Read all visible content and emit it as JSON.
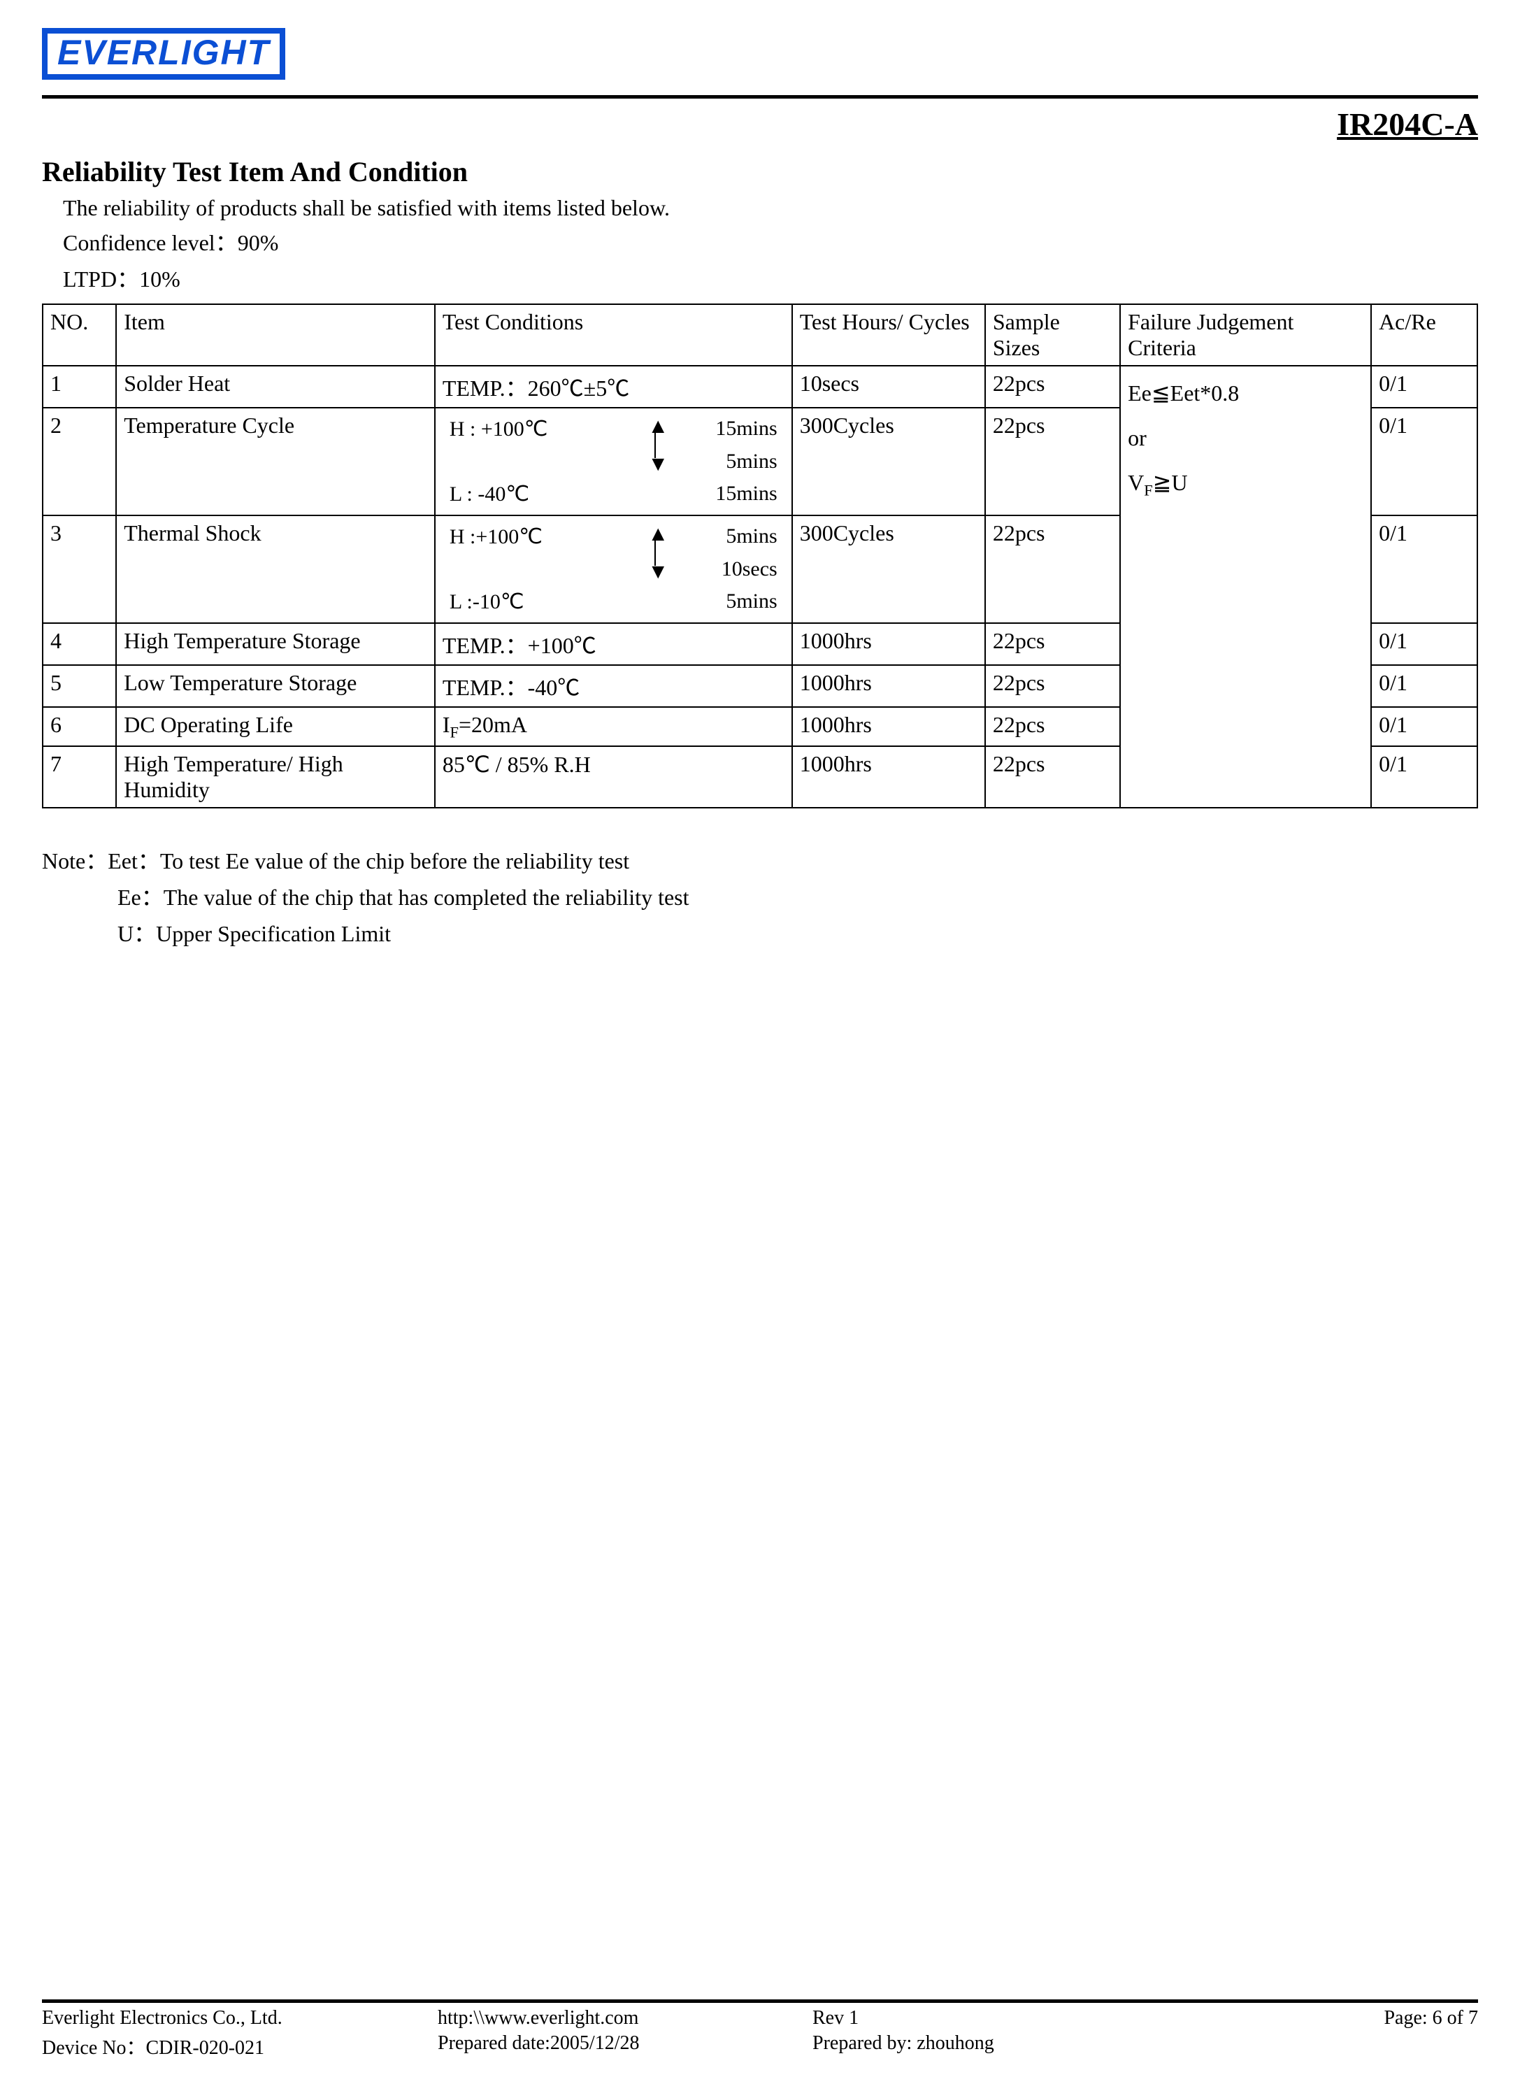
{
  "header": {
    "logo_text": "EVERLIGHT",
    "part_number": "IR204C-A"
  },
  "section": {
    "title": "Reliability Test Item And Condition",
    "intro": "The reliability of products shall be satisfied with items listed below.",
    "confidence": "Confidence level：90%",
    "ltpd": "LTPD：10%"
  },
  "table": {
    "headers": {
      "no": "NO.",
      "item": "Item",
      "cond": "Test Conditions",
      "hours": "Test Hours/ Cycles",
      "sizes": "Sample Sizes",
      "fail": "Failure Judgement Criteria",
      "acre": "Ac/Re"
    },
    "criteria": {
      "line1": "Ee≦Eet*0.8",
      "line2": "or",
      "line3_pre": "V",
      "line3_sub": "F",
      "line3_post": "≧U"
    },
    "rows": [
      {
        "no": "1",
        "item": "Solder Heat",
        "cond_simple": "TEMP.：260℃±5℃",
        "hours": "10secs",
        "sizes": "22pcs",
        "acre": "0/1"
      },
      {
        "no": "2",
        "item": "Temperature Cycle",
        "cond_cycle": {
          "h_label": "H : +100℃",
          "h_time": "15mins",
          "mid_time": "5mins",
          "l_label": "L : -40℃",
          "l_time": "15mins"
        },
        "hours": "300Cycles",
        "sizes": "22pcs",
        "acre": "0/1"
      },
      {
        "no": "3",
        "item": "Thermal Shock",
        "cond_cycle": {
          "h_label": "H :+100℃",
          "h_time": "5mins",
          "mid_time": "10secs",
          "l_label": "L :-10℃",
          "l_time": "5mins"
        },
        "hours": "300Cycles",
        "sizes": "22pcs",
        "acre": "0/1"
      },
      {
        "no": "4",
        "item": "High Temperature Storage",
        "cond_simple": "TEMP.：+100℃",
        "hours": "1000hrs",
        "sizes": "22pcs",
        "acre": "0/1"
      },
      {
        "no": "5",
        "item": "Low Temperature Storage",
        "cond_simple": "TEMP.：-40℃",
        "hours": "1000hrs",
        "sizes": "22pcs",
        "acre": "0/1"
      },
      {
        "no": "6",
        "item": "DC Operating Life",
        "cond_if": {
          "pre": "I",
          "sub": "F",
          "post": "=20mA"
        },
        "hours": "1000hrs",
        "sizes": "22pcs",
        "acre": "0/1"
      },
      {
        "no": "7",
        "item": "High Temperature/ High Humidity",
        "cond_simple": "85℃ / 85% R.H",
        "hours": "1000hrs",
        "sizes": "22pcs",
        "acre": "0/1"
      }
    ]
  },
  "notes": {
    "n1": "Note：Eet：To test Ee value of the chip before the reliability test",
    "n2": "Ee：The value of the chip that has completed the reliability test",
    "n3": "U：Upper Specification Limit"
  },
  "footer": {
    "company": "Everlight Electronics Co., Ltd.",
    "url": "http:\\\\www.everlight.com",
    "rev": "Rev 1",
    "page": "Page: 6 of 7",
    "device": "Device No：CDIR-020-021",
    "prepared_date": "Prepared date:2005/12/28",
    "prepared_by": "Prepared by: zhouhong"
  }
}
